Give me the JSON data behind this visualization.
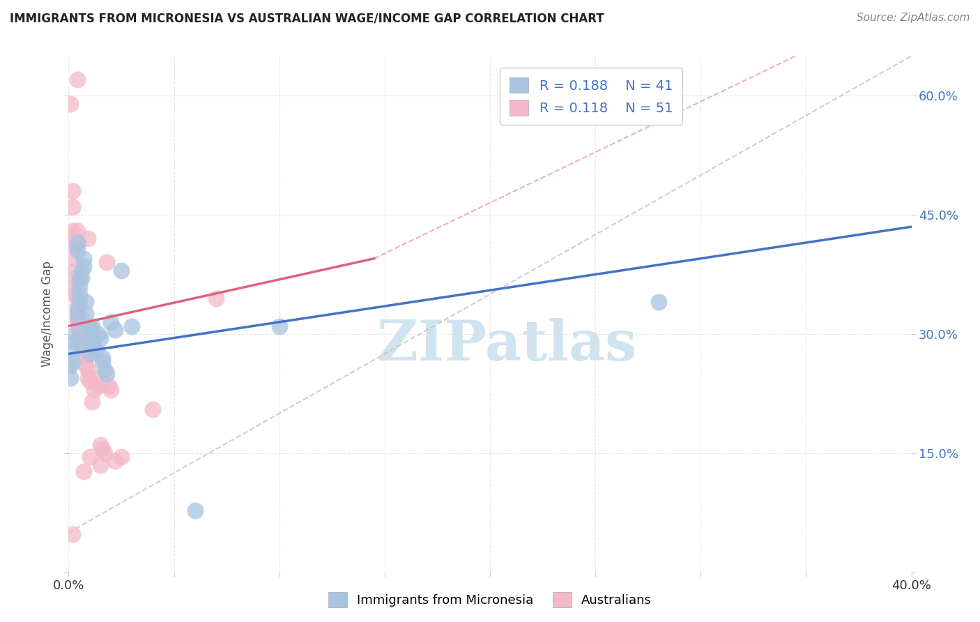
{
  "title": "IMMIGRANTS FROM MICRONESIA VS AUSTRALIAN WAGE/INCOME GAP CORRELATION CHART",
  "source": "Source: ZipAtlas.com",
  "ylabel": "Wage/Income Gap",
  "xlim": [
    0.0,
    0.4
  ],
  "ylim": [
    0.0,
    0.65
  ],
  "xticks": [
    0.0,
    0.05,
    0.1,
    0.15,
    0.2,
    0.25,
    0.3,
    0.35,
    0.4
  ],
  "yticks": [
    0.0,
    0.15,
    0.3,
    0.45,
    0.6
  ],
  "legend_r_blue": "0.188",
  "legend_n_blue": "41",
  "legend_r_pink": "0.118",
  "legend_n_pink": "51",
  "blue_color": "#a8c4e0",
  "pink_color": "#f4b8c8",
  "blue_line_color": "#4472c4",
  "pink_line_color": "#e06080",
  "blue_line": [
    0.0,
    0.275,
    0.4,
    0.435
  ],
  "pink_line": [
    0.0,
    0.31,
    0.145,
    0.395
  ],
  "pink_dashed_line": [
    0.0,
    0.31,
    0.4,
    0.72
  ],
  "gray_dashed_line": [
    0.0,
    0.05,
    0.4,
    0.65
  ],
  "blue_scatter": [
    [
      0.001,
      0.26
    ],
    [
      0.001,
      0.245
    ],
    [
      0.002,
      0.28
    ],
    [
      0.002,
      0.265
    ],
    [
      0.003,
      0.3
    ],
    [
      0.003,
      0.29
    ],
    [
      0.004,
      0.415
    ],
    [
      0.004,
      0.405
    ],
    [
      0.004,
      0.33
    ],
    [
      0.004,
      0.32
    ],
    [
      0.005,
      0.37
    ],
    [
      0.005,
      0.36
    ],
    [
      0.005,
      0.35
    ],
    [
      0.005,
      0.34
    ],
    [
      0.006,
      0.38
    ],
    [
      0.006,
      0.37
    ],
    [
      0.007,
      0.395
    ],
    [
      0.007,
      0.385
    ],
    [
      0.008,
      0.34
    ],
    [
      0.008,
      0.325
    ],
    [
      0.009,
      0.31
    ],
    [
      0.009,
      0.295
    ],
    [
      0.01,
      0.285
    ],
    [
      0.01,
      0.275
    ],
    [
      0.011,
      0.31
    ],
    [
      0.011,
      0.305
    ],
    [
      0.012,
      0.29
    ],
    [
      0.013,
      0.28
    ],
    [
      0.014,
      0.3
    ],
    [
      0.015,
      0.295
    ],
    [
      0.016,
      0.27
    ],
    [
      0.016,
      0.265
    ],
    [
      0.017,
      0.255
    ],
    [
      0.018,
      0.25
    ],
    [
      0.02,
      0.315
    ],
    [
      0.022,
      0.305
    ],
    [
      0.025,
      0.38
    ],
    [
      0.03,
      0.31
    ],
    [
      0.1,
      0.31
    ],
    [
      0.28,
      0.34
    ],
    [
      0.06,
      0.078
    ]
  ],
  "pink_scatter": [
    [
      0.001,
      0.59
    ],
    [
      0.002,
      0.48
    ],
    [
      0.002,
      0.46
    ],
    [
      0.002,
      0.43
    ],
    [
      0.002,
      0.42
    ],
    [
      0.003,
      0.41
    ],
    [
      0.003,
      0.395
    ],
    [
      0.003,
      0.38
    ],
    [
      0.003,
      0.37
    ],
    [
      0.003,
      0.36
    ],
    [
      0.003,
      0.35
    ],
    [
      0.004,
      0.43
    ],
    [
      0.004,
      0.415
    ],
    [
      0.004,
      0.345
    ],
    [
      0.004,
      0.335
    ],
    [
      0.004,
      0.325
    ],
    [
      0.004,
      0.315
    ],
    [
      0.005,
      0.31
    ],
    [
      0.005,
      0.305
    ],
    [
      0.005,
      0.3
    ],
    [
      0.005,
      0.295
    ],
    [
      0.006,
      0.32
    ],
    [
      0.006,
      0.31
    ],
    [
      0.006,
      0.3
    ],
    [
      0.006,
      0.29
    ],
    [
      0.007,
      0.285
    ],
    [
      0.007,
      0.275
    ],
    [
      0.008,
      0.27
    ],
    [
      0.008,
      0.26
    ],
    [
      0.009,
      0.255
    ],
    [
      0.009,
      0.245
    ],
    [
      0.01,
      0.24
    ],
    [
      0.01,
      0.145
    ],
    [
      0.011,
      0.215
    ],
    [
      0.012,
      0.23
    ],
    [
      0.013,
      0.245
    ],
    [
      0.014,
      0.235
    ],
    [
      0.015,
      0.16
    ],
    [
      0.016,
      0.155
    ],
    [
      0.017,
      0.15
    ],
    [
      0.018,
      0.39
    ],
    [
      0.019,
      0.235
    ],
    [
      0.02,
      0.23
    ],
    [
      0.022,
      0.14
    ],
    [
      0.025,
      0.145
    ],
    [
      0.04,
      0.205
    ],
    [
      0.07,
      0.345
    ],
    [
      0.002,
      0.048
    ],
    [
      0.004,
      0.62
    ],
    [
      0.007,
      0.127
    ],
    [
      0.009,
      0.42
    ],
    [
      0.015,
      0.135
    ]
  ],
  "watermark": "ZIPatlas",
  "watermark_color": "#d0e4f0",
  "bg_color": "#ffffff",
  "grid_color": "#e0e0e0"
}
